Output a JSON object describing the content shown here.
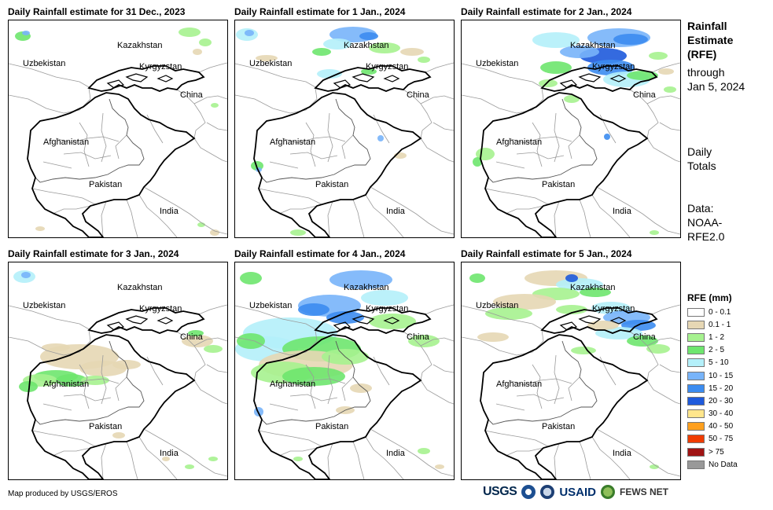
{
  "panels": [
    {
      "title": "Daily Rainfall estimate for 31 Dec., 2023"
    },
    {
      "title": "Daily Rainfall estimate for 1 Jan., 2024"
    },
    {
      "title": "Daily Rainfall estimate for 2 Jan., 2024"
    },
    {
      "title": "Daily Rainfall estimate for 3 Jan., 2024"
    },
    {
      "title": "Daily Rainfall estimate for 4 Jan., 2024"
    },
    {
      "title": "Daily Rainfall estimate for 5 Jan., 2024"
    }
  ],
  "map_labels": {
    "kazakhstan": "Kazakhstan",
    "uzbekistan": "Uzbekistan",
    "kyrgyzstan": "Kyrgyzstan",
    "china": "China",
    "afghanistan": "Afghanistan",
    "pakistan": "Pakistan",
    "india": "India"
  },
  "side": {
    "title_lines": [
      "Rainfall",
      "Estimate",
      "(RFE)"
    ],
    "through_lines": [
      "through",
      "Jan 5, 2024"
    ],
    "daily_lines": [
      "Daily",
      "Totals"
    ],
    "data_lines": [
      "Data:",
      "NOAA-",
      "RFE2.0"
    ]
  },
  "legend": {
    "title": "RFE (mm)",
    "items": [
      {
        "label": "0 - 0.1",
        "color": "#ffffff"
      },
      {
        "label": "0.1 - 1",
        "color": "#e6d7b4"
      },
      {
        "label": "1 - 2",
        "color": "#a6f28f"
      },
      {
        "label": "2 - 5",
        "color": "#6ee66e"
      },
      {
        "label": "5 - 10",
        "color": "#b4f0fa"
      },
      {
        "label": "10 - 15",
        "color": "#78b4fa"
      },
      {
        "label": "15 - 20",
        "color": "#3c8cf0"
      },
      {
        "label": "20 - 30",
        "color": "#1e5adc"
      },
      {
        "label": "30 - 40",
        "color": "#ffe68c"
      },
      {
        "label": "40 - 50",
        "color": "#ffa01e"
      },
      {
        "label": "50 - 75",
        "color": "#f03c00"
      },
      {
        "label": "> 75",
        "color": "#a01414"
      },
      {
        "label": "No Data",
        "color": "#999999"
      }
    ]
  },
  "footer": {
    "credit": "Map produced by USGS/EROS"
  },
  "logos": {
    "usgs": "USGS",
    "usaid": "USAID",
    "fews": "FEWS NET"
  }
}
